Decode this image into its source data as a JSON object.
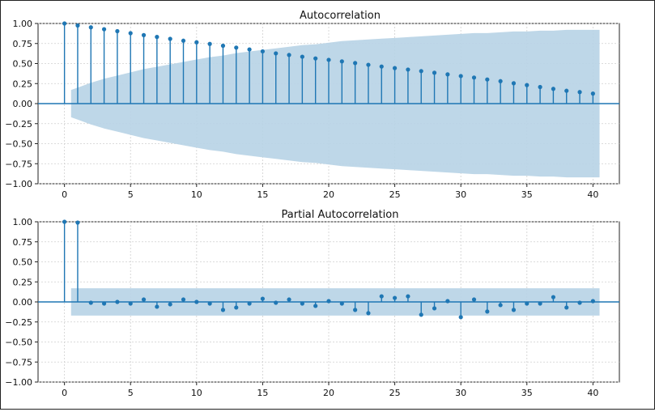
{
  "chart_data": [
    {
      "type": "stem",
      "title": "Autocorrelation",
      "xlabel": "",
      "ylabel": "",
      "xlim": [
        -2,
        42
      ],
      "ylim": [
        -1.0,
        1.0
      ],
      "xticks": [
        0,
        5,
        10,
        15,
        20,
        25,
        30,
        35,
        40
      ],
      "xtick_labels": [
        "0",
        "5",
        "10",
        "15",
        "20",
        "25",
        "30",
        "35",
        "40"
      ],
      "yticks": [
        1.0,
        0.75,
        0.5,
        0.25,
        0.0,
        -0.25,
        -0.5,
        -0.75,
        -1.0
      ],
      "ytick_labels": [
        "1.00",
        "0.75",
        "0.50",
        "0.25",
        "0.00",
        "−0.25",
        "−0.50",
        "−0.75",
        "−1.00"
      ],
      "grid": true,
      "lags": [
        0,
        1,
        2,
        3,
        4,
        5,
        6,
        7,
        8,
        9,
        10,
        11,
        12,
        13,
        14,
        15,
        16,
        17,
        18,
        19,
        20,
        21,
        22,
        23,
        24,
        25,
        26,
        27,
        28,
        29,
        30,
        31,
        32,
        33,
        34,
        35,
        36,
        37,
        38,
        39,
        40
      ],
      "values": [
        1.0,
        0.975,
        0.952,
        0.928,
        0.904,
        0.879,
        0.855,
        0.832,
        0.808,
        0.785,
        0.765,
        0.745,
        0.722,
        0.699,
        0.676,
        0.652,
        0.627,
        0.607,
        0.585,
        0.564,
        0.546,
        0.527,
        0.506,
        0.484,
        0.463,
        0.443,
        0.425,
        0.406,
        0.385,
        0.365,
        0.344,
        0.325,
        0.301,
        0.28,
        0.254,
        0.231,
        0.207,
        0.184,
        0.16,
        0.144,
        0.125
      ],
      "confidence_band": {
        "lags": [
          0.5,
          1,
          2,
          3,
          4,
          5,
          6,
          7,
          8,
          9,
          10,
          11,
          12,
          13,
          14,
          15,
          16,
          17,
          18,
          19,
          20,
          21,
          22,
          23,
          24,
          25,
          26,
          27,
          28,
          29,
          30,
          31,
          32,
          33,
          34,
          35,
          36,
          37,
          38,
          39,
          40,
          40.5
        ],
        "upper": [
          0.17,
          0.2,
          0.26,
          0.31,
          0.35,
          0.39,
          0.43,
          0.46,
          0.49,
          0.52,
          0.55,
          0.58,
          0.6,
          0.63,
          0.65,
          0.67,
          0.69,
          0.71,
          0.73,
          0.74,
          0.76,
          0.78,
          0.79,
          0.8,
          0.81,
          0.82,
          0.83,
          0.84,
          0.85,
          0.86,
          0.87,
          0.88,
          0.88,
          0.89,
          0.9,
          0.9,
          0.91,
          0.91,
          0.92,
          0.92,
          0.92,
          0.92
        ],
        "color": "#b7d3e6"
      },
      "stem_color": "#1f77b4"
    },
    {
      "type": "stem",
      "title": "Partial Autocorrelation",
      "xlabel": "",
      "ylabel": "",
      "xlim": [
        -2,
        42
      ],
      "ylim": [
        -1.0,
        1.0
      ],
      "xticks": [
        0,
        5,
        10,
        15,
        20,
        25,
        30,
        35,
        40
      ],
      "xtick_labels": [
        "0",
        "5",
        "10",
        "15",
        "20",
        "25",
        "30",
        "35",
        "40"
      ],
      "yticks": [
        1.0,
        0.75,
        0.5,
        0.25,
        0.0,
        -0.25,
        -0.5,
        -0.75,
        -1.0
      ],
      "ytick_labels": [
        "1.00",
        "0.75",
        "0.50",
        "0.25",
        "0.00",
        "−0.25",
        "−0.50",
        "−0.75",
        "−1.00"
      ],
      "grid": true,
      "lags": [
        0,
        1,
        2,
        3,
        4,
        5,
        6,
        7,
        8,
        9,
        10,
        11,
        12,
        13,
        14,
        15,
        16,
        17,
        18,
        19,
        20,
        21,
        22,
        23,
        24,
        25,
        26,
        27,
        28,
        29,
        30,
        31,
        32,
        33,
        34,
        35,
        36,
        37,
        38,
        39,
        40
      ],
      "values": [
        1.0,
        0.99,
        -0.01,
        -0.02,
        0.0,
        -0.02,
        0.03,
        -0.06,
        -0.03,
        0.03,
        0.0,
        -0.02,
        -0.1,
        -0.07,
        -0.02,
        0.04,
        -0.01,
        0.03,
        -0.02,
        -0.05,
        0.01,
        -0.02,
        -0.1,
        -0.14,
        0.07,
        0.05,
        0.07,
        -0.16,
        -0.08,
        0.01,
        -0.19,
        0.03,
        -0.12,
        -0.04,
        -0.1,
        -0.02,
        -0.02,
        0.06,
        -0.07,
        -0.01,
        0.01
      ],
      "confidence_band": {
        "lags": [
          0.5,
          40.5
        ],
        "upper": [
          0.17,
          0.17
        ],
        "color": "#b7d3e6"
      },
      "stem_color": "#1f77b4"
    }
  ]
}
